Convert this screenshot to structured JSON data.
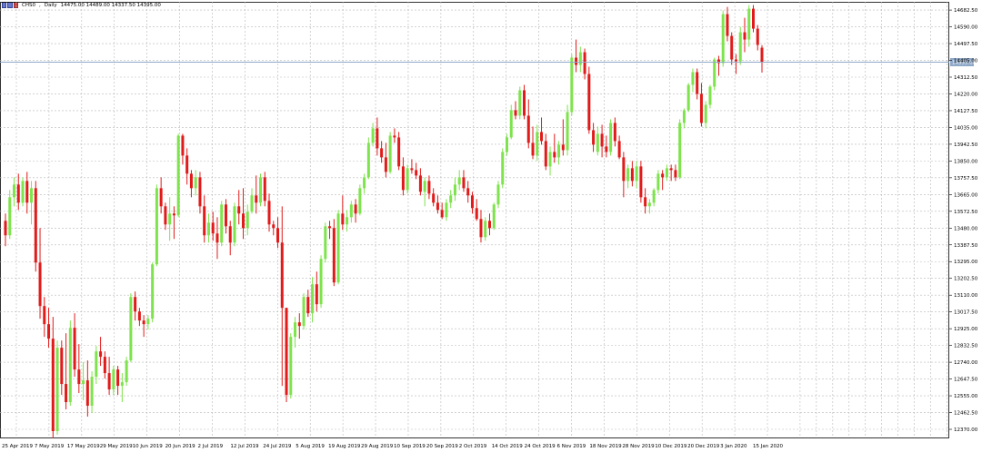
{
  "header": {
    "icons": [
      "chart-toolbar-icon"
    ],
    "symbol": "CHS0",
    "timeframe": "Daily",
    "ohlc_text": "14475.00 14489.00 14337.50 14395.00"
  },
  "colors": {
    "up": "#7ee34c",
    "down": "#e11a1a",
    "grid": "#b8b8b8",
    "hline": "#8ea8c8",
    "tag": "#8ea8c8"
  },
  "chart_data": {
    "type": "candlestick",
    "price_line": 14395.0,
    "ylim": [
      12325,
      14728
    ],
    "x_ticks": [
      "25 Apr 2019",
      "7 May 2019",
      "17 May 2019",
      "29 May 2019",
      "10 Jun 2019",
      "20 Jun 2019",
      "2 Jul 2019",
      "12 Jul 2019",
      "24 Jul 2019",
      "5 Aug 2019",
      "19 Aug 2019",
      "29 Aug 2019",
      "10 Sep 2019",
      "20 Sep 2019",
      "2 Oct 2019",
      "14 Oct 2019",
      "24 Oct 2019",
      "6 Nov 2019",
      "18 Nov 2019",
      "28 Nov 2019",
      "10 Dec 2019",
      "20 Dec 2019",
      "3 Jan 2020",
      "15 Jan 2020"
    ],
    "y_ticks": [
      14682.5,
      14590.0,
      14497.5,
      14405.0,
      14312.5,
      14220.0,
      14127.5,
      14035.0,
      13942.5,
      13850.0,
      13757.5,
      13665.0,
      13572.5,
      13480.0,
      13387.5,
      13295.0,
      13202.5,
      13110.0,
      13017.5,
      12925.0,
      12832.5,
      12740.0,
      12647.5,
      12555.0,
      12462.5,
      12370.0
    ],
    "candles": [
      [
        13520,
        13560,
        13380,
        13440
      ],
      [
        13440,
        13690,
        13420,
        13650
      ],
      [
        13650,
        13760,
        13600,
        13720
      ],
      [
        13720,
        13780,
        13580,
        13620
      ],
      [
        13620,
        13760,
        13600,
        13740
      ],
      [
        13740,
        13790,
        13560,
        13620
      ],
      [
        13620,
        13740,
        13500,
        13700
      ],
      [
        13700,
        13740,
        13240,
        13290
      ],
      [
        13290,
        13480,
        12980,
        13050
      ],
      [
        13050,
        13100,
        12880,
        12950
      ],
      [
        12950,
        13040,
        12820,
        12870
      ],
      [
        12870,
        12990,
        12320,
        12360
      ],
      [
        12360,
        12860,
        12340,
        12820
      ],
      [
        12820,
        12860,
        12560,
        12620
      ],
      [
        12620,
        12900,
        12480,
        12520
      ],
      [
        12520,
        12970,
        12500,
        12930
      ],
      [
        12930,
        13010,
        12660,
        12700
      ],
      [
        12700,
        12840,
        12570,
        12620
      ],
      [
        12620,
        12740,
        12530,
        12640
      ],
      [
        12640,
        12750,
        12440,
        12500
      ],
      [
        12500,
        12690,
        12460,
        12660
      ],
      [
        12660,
        12830,
        12620,
        12800
      ],
      [
        12800,
        12880,
        12720,
        12770
      ],
      [
        12770,
        12800,
        12650,
        12680
      ],
      [
        12680,
        12770,
        12560,
        12590
      ],
      [
        12590,
        12720,
        12560,
        12700
      ],
      [
        12700,
        12720,
        12560,
        12610
      ],
      [
        12610,
        12680,
        12520,
        12630
      ],
      [
        12630,
        12770,
        12610,
        12750
      ],
      [
        12750,
        13120,
        12740,
        13100
      ],
      [
        13100,
        13130,
        12970,
        13020
      ],
      [
        13020,
        13040,
        12940,
        12970
      ],
      [
        12970,
        13000,
        12880,
        12950
      ],
      [
        12950,
        13000,
        12920,
        12980
      ],
      [
        12980,
        13290,
        12960,
        13280
      ],
      [
        13280,
        13720,
        13270,
        13700
      ],
      [
        13700,
        13760,
        13560,
        13600
      ],
      [
        13600,
        13620,
        13470,
        13500
      ],
      [
        13500,
        13650,
        13410,
        13560
      ],
      [
        13560,
        13600,
        13420,
        13550
      ],
      [
        13550,
        14000,
        13540,
        13990
      ],
      [
        13990,
        14000,
        13830,
        13880
      ],
      [
        13880,
        13920,
        13720,
        13780
      ],
      [
        13780,
        13800,
        13650,
        13700
      ],
      [
        13700,
        13800,
        13660,
        13760
      ],
      [
        13760,
        13790,
        13560,
        13600
      ],
      [
        13600,
        13660,
        13400,
        13440
      ],
      [
        13440,
        13560,
        13400,
        13510
      ],
      [
        13510,
        13570,
        13410,
        13450
      ],
      [
        13450,
        13540,
        13310,
        13400
      ],
      [
        13400,
        13630,
        13380,
        13610
      ],
      [
        13610,
        13640,
        13450,
        13490
      ],
      [
        13490,
        13520,
        13330,
        13400
      ],
      [
        13400,
        13620,
        13380,
        13600
      ],
      [
        13600,
        13690,
        13500,
        13560
      ],
      [
        13560,
        13700,
        13420,
        13480
      ],
      [
        13480,
        13610,
        13440,
        13570
      ],
      [
        13570,
        13700,
        13560,
        13660
      ],
      [
        13660,
        13770,
        13560,
        13620
      ],
      [
        13620,
        13780,
        13600,
        13760
      ],
      [
        13760,
        13790,
        13600,
        13630
      ],
      [
        13630,
        13670,
        13460,
        13500
      ],
      [
        13500,
        13520,
        13440,
        13480
      ],
      [
        13480,
        13540,
        13370,
        13400
      ],
      [
        13400,
        13600,
        12610,
        13040
      ],
      [
        13040,
        13040,
        12520,
        12560
      ],
      [
        12560,
        12900,
        12540,
        12880
      ],
      [
        12880,
        12990,
        12820,
        12960
      ],
      [
        12960,
        13010,
        12870,
        12940
      ],
      [
        12940,
        13120,
        12920,
        13100
      ],
      [
        13100,
        13140,
        12990,
        13010
      ],
      [
        13010,
        13210,
        12960,
        13170
      ],
      [
        13170,
        13240,
        13020,
        13060
      ],
      [
        13060,
        13330,
        13040,
        13310
      ],
      [
        13310,
        13510,
        13290,
        13490
      ],
      [
        13490,
        13520,
        13420,
        13480
      ],
      [
        13480,
        13530,
        13160,
        13180
      ],
      [
        13180,
        13580,
        13170,
        13560
      ],
      [
        13560,
        13660,
        13470,
        13500
      ],
      [
        13500,
        13580,
        13460,
        13540
      ],
      [
        13540,
        13630,
        13510,
        13610
      ],
      [
        13610,
        13640,
        13510,
        13560
      ],
      [
        13560,
        13720,
        13550,
        13700
      ],
      [
        13700,
        13780,
        13670,
        13760
      ],
      [
        13760,
        13980,
        13750,
        13950
      ],
      [
        13950,
        14060,
        13930,
        14030
      ],
      [
        14030,
        14090,
        13880,
        13920
      ],
      [
        13920,
        13960,
        13840,
        13870
      ],
      [
        13870,
        13950,
        13760,
        13790
      ],
      [
        13790,
        14010,
        13780,
        13990
      ],
      [
        13990,
        14030,
        13950,
        13980
      ],
      [
        13980,
        14010,
        13800,
        13820
      ],
      [
        13820,
        13870,
        13660,
        13690
      ],
      [
        13690,
        13830,
        13670,
        13810
      ],
      [
        13810,
        13860,
        13780,
        13800
      ],
      [
        13800,
        13840,
        13750,
        13770
      ],
      [
        13770,
        13810,
        13660,
        13680
      ],
      [
        13680,
        13760,
        13600,
        13740
      ],
      [
        13740,
        13770,
        13640,
        13670
      ],
      [
        13670,
        13700,
        13600,
        13620
      ],
      [
        13620,
        13660,
        13560,
        13580
      ],
      [
        13580,
        13620,
        13530,
        13540
      ],
      [
        13540,
        13640,
        13520,
        13620
      ],
      [
        13620,
        13690,
        13590,
        13660
      ],
      [
        13660,
        13760,
        13630,
        13720
      ],
      [
        13720,
        13800,
        13690,
        13760
      ],
      [
        13760,
        13800,
        13680,
        13700
      ],
      [
        13700,
        13740,
        13620,
        13660
      ],
      [
        13660,
        13680,
        13560,
        13590
      ],
      [
        13590,
        13640,
        13520,
        13530
      ],
      [
        13530,
        13580,
        13400,
        13430
      ],
      [
        13430,
        13540,
        13410,
        13520
      ],
      [
        13520,
        13560,
        13440,
        13480
      ],
      [
        13480,
        13620,
        13470,
        13610
      ],
      [
        13610,
        13740,
        13590,
        13720
      ],
      [
        13720,
        13920,
        13700,
        13900
      ],
      [
        13900,
        14000,
        13880,
        13980
      ],
      [
        13980,
        14160,
        13970,
        14130
      ],
      [
        14130,
        14180,
        14080,
        14100
      ],
      [
        14100,
        14260,
        14080,
        14240
      ],
      [
        14240,
        14270,
        14080,
        14100
      ],
      [
        14100,
        14190,
        13920,
        13950
      ],
      [
        13950,
        14040,
        13860,
        13880
      ],
      [
        13880,
        14050,
        13850,
        14010
      ],
      [
        14010,
        14090,
        13940,
        13960
      ],
      [
        13960,
        14000,
        13800,
        13820
      ],
      [
        13820,
        13930,
        13770,
        13900
      ],
      [
        13900,
        14000,
        13840,
        13870
      ],
      [
        13870,
        13960,
        13830,
        13940
      ],
      [
        13940,
        14080,
        13880,
        13910
      ],
      [
        13910,
        14160,
        13880,
        14120
      ],
      [
        14120,
        14440,
        14100,
        14420
      ],
      [
        14420,
        14520,
        14340,
        14380
      ],
      [
        14380,
        14480,
        14340,
        14450
      ],
      [
        14450,
        14470,
        14300,
        14330
      ],
      [
        14330,
        14370,
        14000,
        14020
      ],
      [
        14020,
        14060,
        13900,
        13940
      ],
      [
        13900,
        14040,
        13880,
        14000
      ],
      [
        14000,
        14050,
        13870,
        13930
      ],
      [
        13930,
        13990,
        13870,
        13900
      ],
      [
        13900,
        14080,
        13880,
        14060
      ],
      [
        14060,
        14090,
        13930,
        13960
      ],
      [
        13960,
        13990,
        13860,
        13870
      ],
      [
        13870,
        13900,
        13650,
        13740
      ],
      [
        13740,
        13830,
        13700,
        13810
      ],
      [
        13810,
        13850,
        13710,
        13740
      ],
      [
        13740,
        13850,
        13700,
        13820
      ],
      [
        13820,
        13850,
        13620,
        13650
      ],
      [
        13650,
        13700,
        13560,
        13600
      ],
      [
        13600,
        13640,
        13560,
        13620
      ],
      [
        13620,
        13700,
        13600,
        13690
      ],
      [
        13690,
        13800,
        13670,
        13780
      ],
      [
        13780,
        13800,
        13690,
        13760
      ],
      [
        13760,
        13830,
        13740,
        13810
      ],
      [
        13810,
        13830,
        13740,
        13800
      ],
      [
        13800,
        13830,
        13740,
        13760
      ],
      [
        13760,
        14080,
        13750,
        14060
      ],
      [
        14060,
        14140,
        14030,
        14130
      ],
      [
        14130,
        14280,
        14120,
        14270
      ],
      [
        14270,
        14360,
        14230,
        14340
      ],
      [
        14340,
        14360,
        14190,
        14220
      ],
      [
        14220,
        14280,
        14040,
        14060
      ],
      [
        14060,
        14180,
        14030,
        14160
      ],
      [
        14160,
        14270,
        14140,
        14260
      ],
      [
        14260,
        14420,
        14240,
        14410
      ],
      [
        14410,
        14430,
        14320,
        14390
      ],
      [
        14390,
        14680,
        14370,
        14660
      ],
      [
        14660,
        14700,
        14510,
        14540
      ],
      [
        14540,
        14560,
        14380,
        14410
      ],
      [
        14410,
        14440,
        14330,
        14400
      ],
      [
        14400,
        14590,
        14380,
        14560
      ],
      [
        14560,
        14640,
        14450,
        14520
      ],
      [
        14520,
        14710,
        14480,
        14690
      ],
      [
        14690,
        14710,
        14560,
        14580
      ],
      [
        14580,
        14600,
        14460,
        14490
      ],
      [
        14475,
        14489,
        14337.5,
        14395
      ]
    ]
  }
}
